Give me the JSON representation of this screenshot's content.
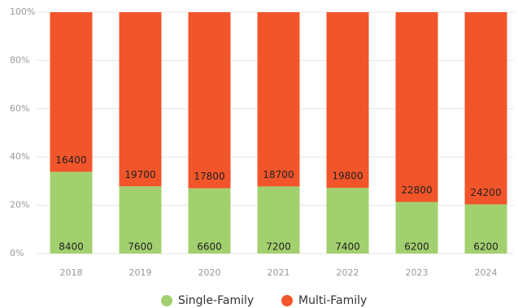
{
  "chart_data": {
    "type": "bar",
    "stacked": "percent",
    "categories": [
      "2018",
      "2019",
      "2020",
      "2021",
      "2022",
      "2023",
      "2024"
    ],
    "series": [
      {
        "name": "Single-Family",
        "color": "#a3d06f",
        "values": [
          8400,
          7600,
          6600,
          7200,
          7400,
          6200,
          6200
        ]
      },
      {
        "name": "Multi-Family",
        "color": "#f2552a",
        "values": [
          16400,
          19700,
          17800,
          18700,
          19800,
          22800,
          24200
        ]
      }
    ],
    "ylim": [
      0,
      100
    ],
    "yticks": [
      {
        "value": 0,
        "label": "0%"
      },
      {
        "value": 20,
        "label": "20%"
      },
      {
        "value": 40,
        "label": "40%"
      },
      {
        "value": 60,
        "label": "60%"
      },
      {
        "value": 80,
        "label": "80%"
      },
      {
        "value": 100,
        "label": "100%"
      }
    ],
    "grid": true,
    "legend": "bottom"
  }
}
